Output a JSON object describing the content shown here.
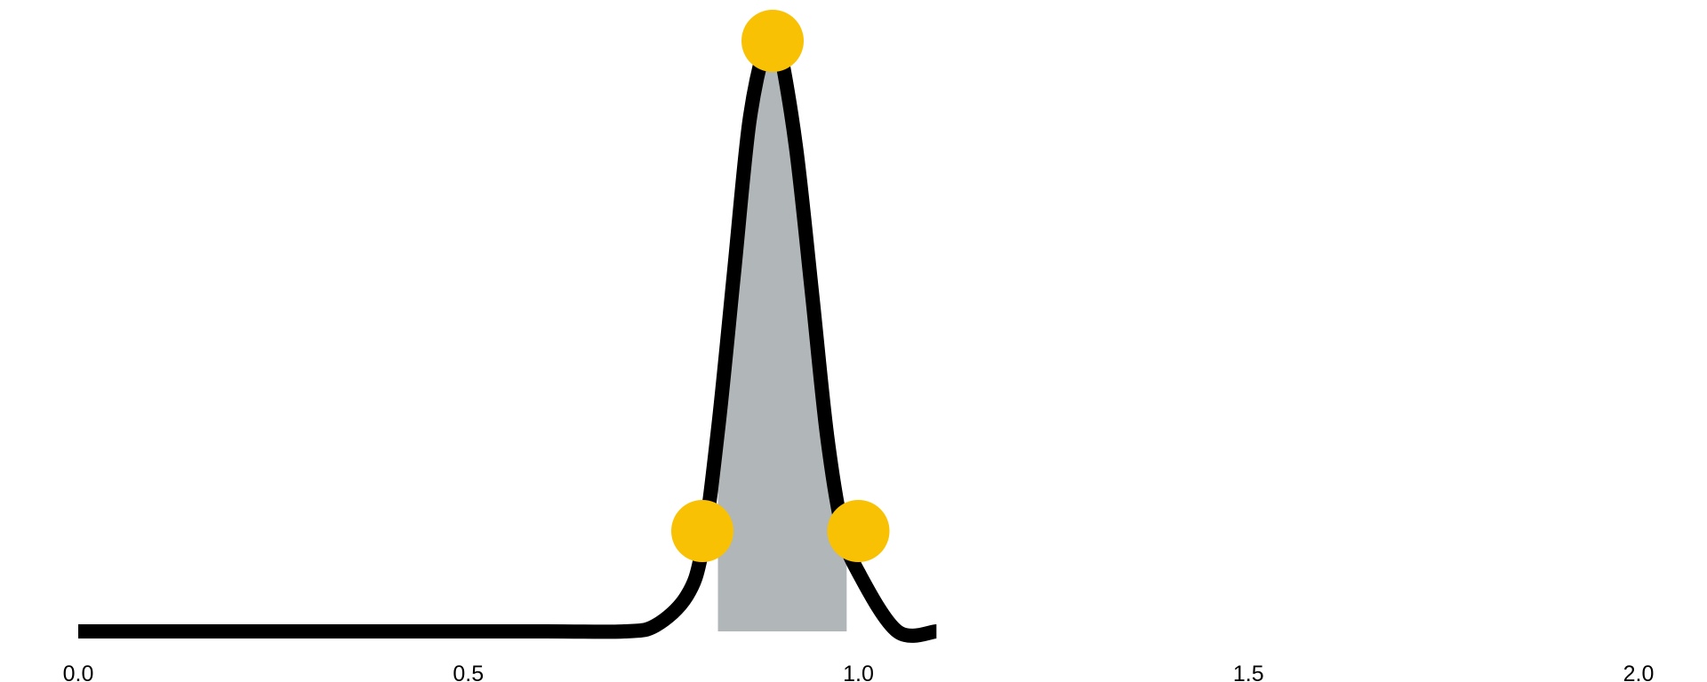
{
  "chart_data": {
    "type": "area",
    "xlim": [
      0.0,
      2.0
    ],
    "xticks": [
      "0.0",
      "0.5",
      "1.0",
      "1.5",
      "2.0"
    ],
    "yaxis_visible": false,
    "grid": false,
    "legend": "none",
    "curve": {
      "x": [
        0.0,
        0.2,
        0.4,
        0.6,
        0.7,
        0.74,
        0.78,
        0.8,
        0.82,
        0.84,
        0.86,
        0.88,
        0.89,
        0.9,
        0.92,
        0.94,
        0.96,
        0.98,
        1.0,
        1.05,
        1.1
      ],
      "y": [
        0.0,
        0.0,
        0.0,
        0.0,
        0.0,
        0.01,
        0.06,
        0.14,
        0.34,
        0.6,
        0.86,
        0.99,
        1.0,
        0.98,
        0.82,
        0.58,
        0.33,
        0.17,
        0.1,
        0.0,
        0.0
      ],
      "color": "#000000"
    },
    "shaded_region": {
      "x_start": 0.82,
      "x_end": 0.985,
      "color": "#b1b6b8"
    },
    "markers": [
      {
        "x": 0.8,
        "y": 0.17
      },
      {
        "x": 0.89,
        "y": 1.0
      },
      {
        "x": 1.0,
        "y": 0.17
      }
    ],
    "marker_color": "#f8c104"
  }
}
